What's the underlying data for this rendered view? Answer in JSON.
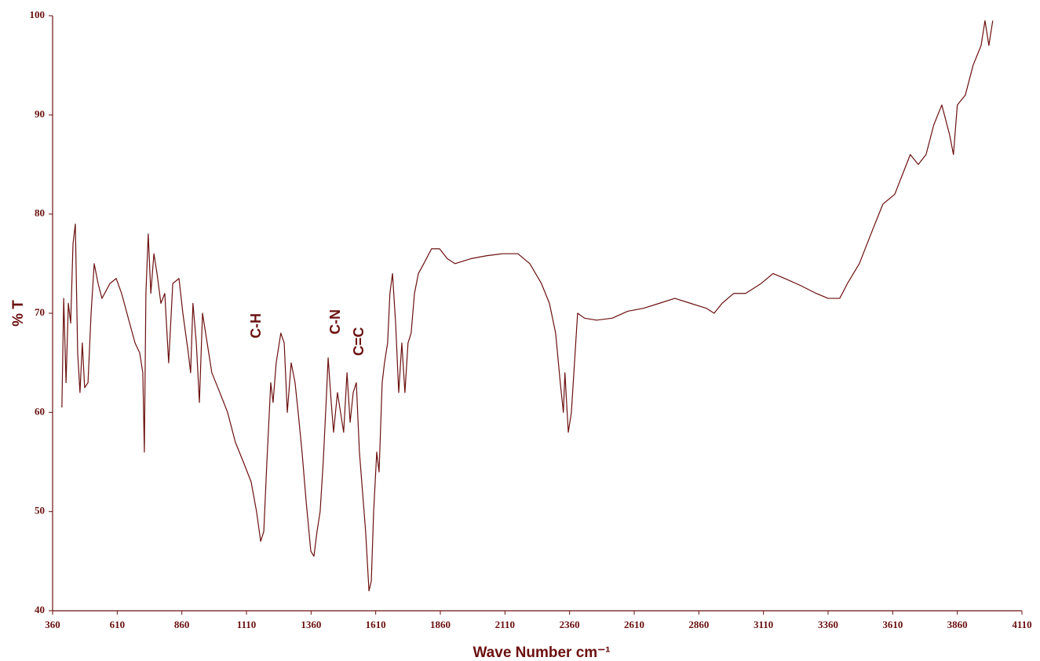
{
  "chart_data": {
    "type": "line",
    "x_label": "Wave Number cm⁻¹",
    "y_label": "% T",
    "xlim": [
      360,
      4110
    ],
    "ylim": [
      40,
      100
    ],
    "xticks": [
      360,
      610,
      860,
      1110,
      1360,
      1610,
      1860,
      2110,
      2360,
      2610,
      2860,
      3110,
      3360,
      3610,
      3860,
      4110
    ],
    "yticks": [
      40,
      50,
      60,
      70,
      80,
      90,
      100
    ],
    "annotations": [
      "C-H",
      "C-N",
      "C=C"
    ],
    "series": [
      {
        "name": "% T",
        "color": "#6b0f0f",
        "x": [
          396,
          403,
          412,
          421,
          430,
          439,
          448,
          457,
          466,
          475,
          484,
          497,
          509,
          521,
          536,
          551,
          582,
          606,
          627,
          658,
          679,
          697,
          709,
          715,
          721,
          730,
          740,
          752,
          764,
          779,
          794,
          809,
          825,
          849,
          864,
          885,
          894,
          903,
          916,
          928,
          940,
          952,
          976,
          1007,
          1037,
          1067,
          1098,
          1128,
          1149,
          1165,
          1177,
          1189,
          1204,
          1213,
          1225,
          1243,
          1256,
          1268,
          1283,
          1298,
          1310,
          1325,
          1341,
          1359,
          1371,
          1383,
          1395,
          1407,
          1420,
          1426,
          1438,
          1447,
          1462,
          1474,
          1486,
          1499,
          1511,
          1523,
          1535,
          1547,
          1559,
          1571,
          1584,
          1593,
          1602,
          1614,
          1623,
          1635,
          1644,
          1656,
          1665,
          1675,
          1687,
          1699,
          1711,
          1723,
          1735,
          1747,
          1760,
          1775,
          1796,
          1826,
          1857,
          1887,
          1917,
          1978,
          2039,
          2100,
          2160,
          2206,
          2251,
          2282,
          2306,
          2324,
          2336,
          2342,
          2355,
          2367,
          2379,
          2391,
          2418,
          2464,
          2525,
          2585,
          2646,
          2707,
          2767,
          2828,
          2889,
          2919,
          2950,
          2995,
          3041,
          3101,
          3147,
          3193,
          3253,
          3314,
          3360,
          3405,
          3435,
          3481,
          3526,
          3572,
          3618,
          3648,
          3678,
          3709,
          3739,
          3769,
          3800,
          3830,
          3845,
          3860,
          3891,
          3921,
          3952,
          3967,
          3982,
          3997
        ],
        "values": [
          60.5,
          71.5,
          63,
          71,
          69,
          77,
          79,
          66,
          62,
          67,
          62.5,
          63,
          70,
          75,
          73,
          71.5,
          73,
          73.5,
          72,
          69,
          67,
          66,
          64,
          56,
          72,
          78,
          72,
          76,
          74,
          71,
          72,
          65,
          73,
          73.5,
          70,
          66,
          64,
          71,
          67,
          61,
          70,
          68,
          64,
          62,
          60,
          57,
          55,
          53,
          50,
          47,
          48,
          55,
          63,
          61,
          65,
          68,
          67,
          60,
          65,
          63,
          60,
          56,
          51,
          46,
          45.5,
          48,
          50,
          55,
          62,
          65.5,
          61,
          58,
          62,
          60,
          58,
          64,
          59,
          62,
          63,
          56,
          52,
          48,
          42,
          43,
          50,
          56,
          54,
          63,
          65,
          67,
          72,
          74,
          69,
          62,
          67,
          62,
          67,
          68,
          72,
          74,
          75,
          76.5,
          76.5,
          75.5,
          75,
          75.5,
          75.8,
          76,
          76,
          75,
          73,
          71,
          68,
          63,
          60,
          64,
          58,
          60,
          65,
          70,
          69.5,
          69.3,
          69.5,
          70.2,
          70.5,
          71,
          71.5,
          71,
          70.5,
          70,
          71,
          72,
          72,
          73,
          74,
          73.5,
          72.8,
          72,
          71.5,
          71.5,
          73,
          75,
          78,
          81,
          82,
          84,
          86,
          85,
          86,
          89,
          91,
          88,
          86,
          91,
          92,
          95,
          97,
          99.5,
          97,
          99.5
        ]
      }
    ]
  }
}
